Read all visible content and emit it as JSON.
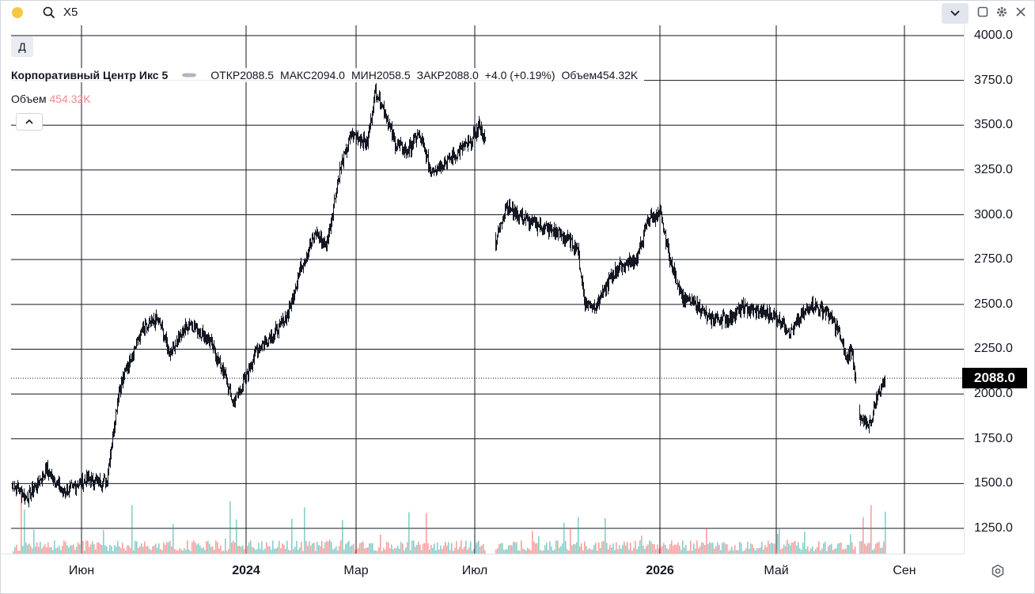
{
  "toolbar": {
    "symbol": "X5",
    "icons": [
      "status-dot",
      "search-icon",
      "chevron-down-icon",
      "maximize-icon",
      "gear-icon",
      "close-icon"
    ]
  },
  "period_button": "Д",
  "legend": {
    "title": "Корпоративный Центр Икс 5",
    "open_label": "ОТКР",
    "open": "2088.5",
    "high_label": "МАКС",
    "high": "2094.0",
    "low_label": "МИН",
    "low": "2058.5",
    "close_label": "ЗАКР",
    "close": "2088.0",
    "change": "+4.0 (+0.19%)",
    "volume_label": "Объем",
    "volume": "454.32K"
  },
  "volume_pane": {
    "label": "Объем",
    "value": "454.32K",
    "up_color": "#26a69a",
    "down_color": "#ef5350"
  },
  "price_axis": {
    "ticks": [
      "4000.0",
      "3750.0",
      "3500.0",
      "3250.0",
      "3000.0",
      "2750.0",
      "2500.0",
      "2250.0",
      "2000.0",
      "1750.0",
      "1500.0",
      "1250.0"
    ],
    "current_price": "2088.0"
  },
  "time_axis": {
    "ticks": [
      {
        "label": "Июн",
        "bold": false
      },
      {
        "label": "2024",
        "bold": true
      },
      {
        "label": "Мар",
        "bold": false
      },
      {
        "label": "Июл",
        "bold": false
      },
      {
        "label": "2026",
        "bold": true
      },
      {
        "label": "Май",
        "bold": false
      },
      {
        "label": "Сен",
        "bold": false
      }
    ]
  },
  "chart_data": {
    "type": "candlestick",
    "symbol": "X5",
    "ylim": [
      1150,
      4020
    ],
    "grid": true,
    "current_price": 2088.0,
    "anchors": [
      [
        0,
        1500
      ],
      [
        20,
        1420
      ],
      [
        45,
        1580
      ],
      [
        65,
        1450
      ],
      [
        95,
        1520
      ],
      [
        120,
        1510
      ],
      [
        135,
        2000
      ],
      [
        150,
        2200
      ],
      [
        165,
        2350
      ],
      [
        185,
        2420
      ],
      [
        200,
        2230
      ],
      [
        225,
        2400
      ],
      [
        250,
        2300
      ],
      [
        270,
        2100
      ],
      [
        280,
        1950
      ],
      [
        295,
        2080
      ],
      [
        310,
        2250
      ],
      [
        335,
        2350
      ],
      [
        350,
        2450
      ],
      [
        365,
        2700
      ],
      [
        385,
        2900
      ],
      [
        398,
        2820
      ],
      [
        415,
        3250
      ],
      [
        430,
        3450
      ],
      [
        450,
        3400
      ],
      [
        460,
        3700
      ],
      [
        470,
        3600
      ],
      [
        485,
        3400
      ],
      [
        500,
        3350
      ],
      [
        515,
        3450
      ],
      [
        530,
        3250
      ],
      [
        550,
        3300
      ],
      [
        565,
        3350
      ],
      [
        580,
        3400
      ],
      [
        592,
        3500
      ],
      [
        600,
        3380
      ],
      [
        612,
        2850
      ],
      [
        625,
        3050
      ],
      [
        640,
        3000
      ],
      [
        660,
        2950
      ],
      [
        690,
        2900
      ],
      [
        715,
        2820
      ],
      [
        725,
        2500
      ],
      [
        740,
        2500
      ],
      [
        752,
        2600
      ],
      [
        765,
        2700
      ],
      [
        790,
        2750
      ],
      [
        805,
        2980
      ],
      [
        820,
        3000
      ],
      [
        835,
        2700
      ],
      [
        850,
        2530
      ],
      [
        870,
        2480
      ],
      [
        880,
        2420
      ],
      [
        905,
        2420
      ],
      [
        925,
        2480
      ],
      [
        940,
        2460
      ],
      [
        965,
        2440
      ],
      [
        985,
        2350
      ],
      [
        1010,
        2500
      ],
      [
        1030,
        2460
      ],
      [
        1045,
        2350
      ],
      [
        1055,
        2200
      ],
      [
        1062,
        2250
      ],
      [
        1068,
        2060
      ],
      [
        1072,
        1850
      ],
      [
        1085,
        1830
      ],
      [
        1095,
        2000
      ],
      [
        1104,
        2088
      ]
    ]
  }
}
